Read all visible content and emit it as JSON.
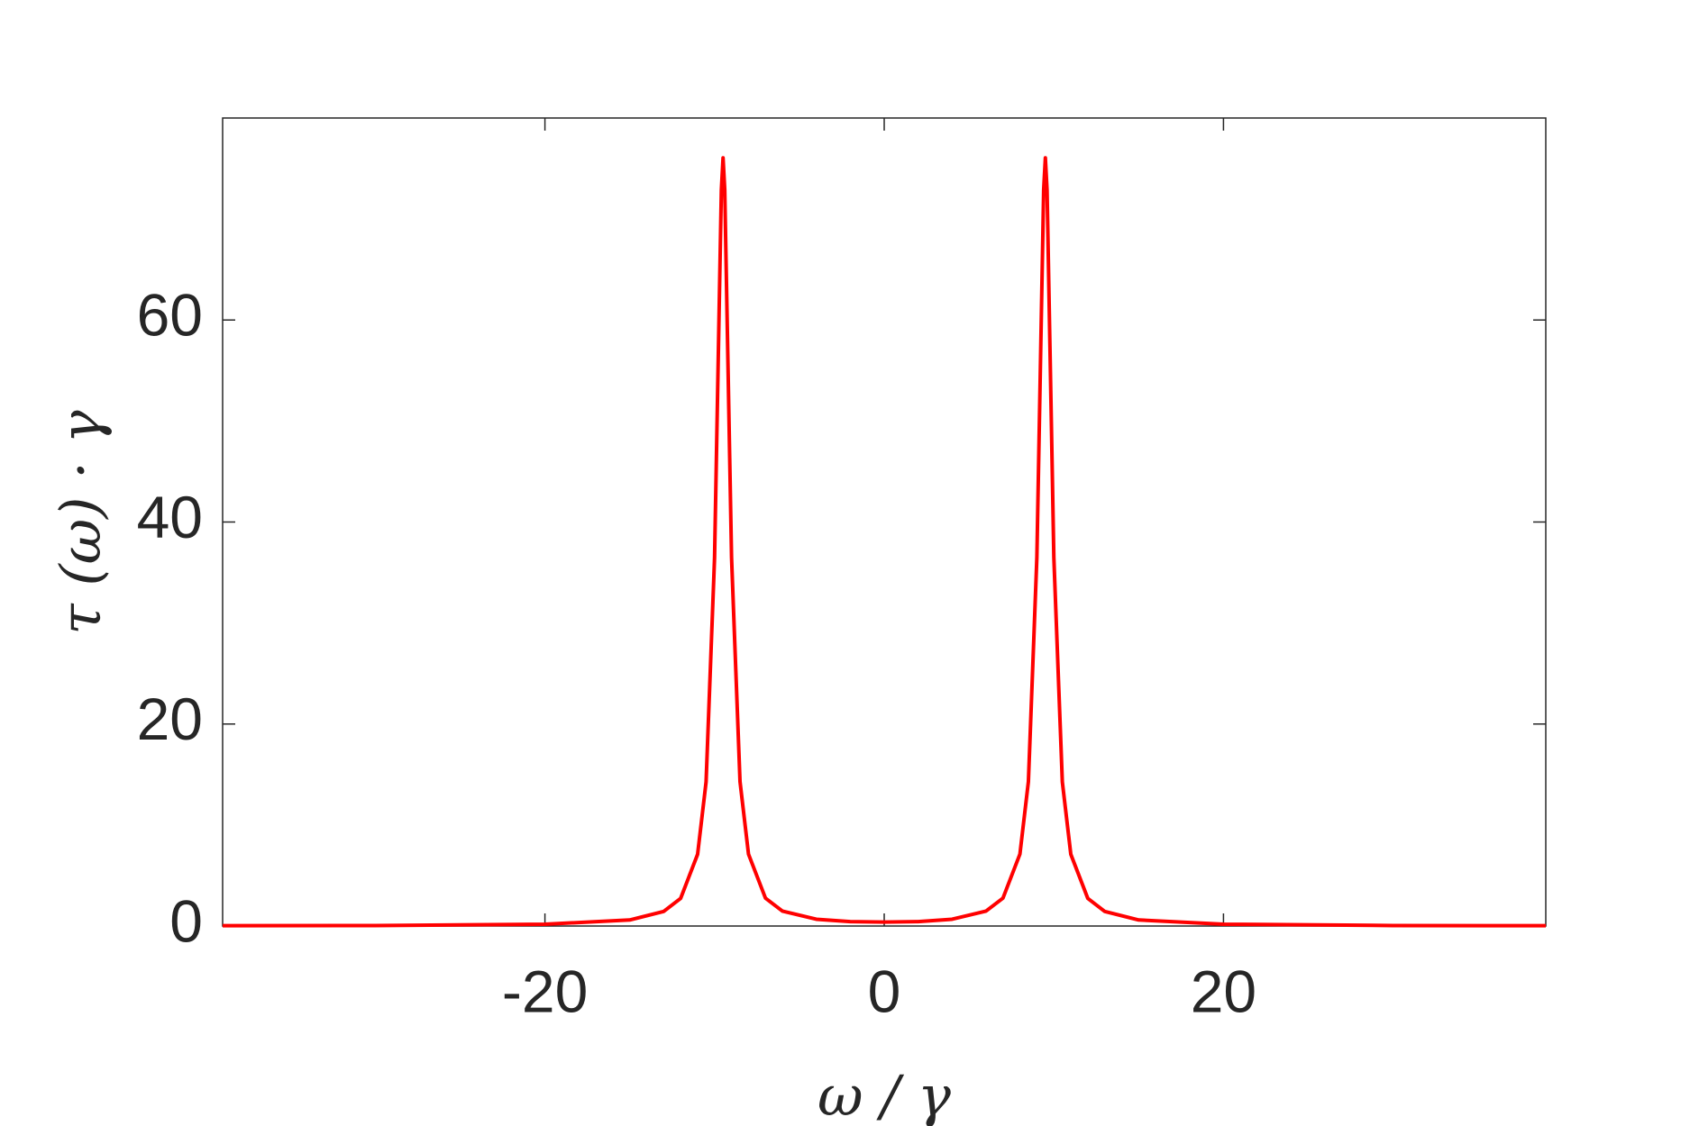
{
  "chart_data": {
    "type": "line",
    "xlabel": "ω / γ",
    "ylabel": "τ (ω) · γ",
    "x": [
      -39,
      -30,
      -20,
      -15,
      -13,
      -12,
      -11,
      -10.5,
      -10,
      -9.8,
      -9.6,
      -9.5,
      -9.4,
      -9.2,
      -9,
      -8.5,
      -8,
      -7,
      -6,
      -4,
      -2,
      0,
      2,
      4,
      6,
      7,
      8,
      8.5,
      9,
      9.2,
      9.4,
      9.5,
      9.6,
      9.8,
      10,
      10.5,
      11,
      12,
      13,
      15,
      20,
      30,
      39
    ],
    "values": [
      0.03,
      0.05,
      0.18,
      0.6,
      1.44,
      2.74,
      7.1,
      14.27,
      36.49,
      54.68,
      72.88,
      76.05,
      72.89,
      54.69,
      36.5,
      14.29,
      7.12,
      2.76,
      1.48,
      0.67,
      0.44,
      0.39,
      0.44,
      0.67,
      1.48,
      2.76,
      7.12,
      14.29,
      36.5,
      54.69,
      72.89,
      76.05,
      72.88,
      54.68,
      36.49,
      14.27,
      7.1,
      2.74,
      1.44,
      0.6,
      0.18,
      0.05,
      0.03
    ],
    "color": "#ff0000",
    "xlim": [
      -39,
      39
    ],
    "xticks": [
      -20,
      0,
      20
    ],
    "ylim": [
      0,
      80
    ],
    "yticks": [
      0,
      20,
      40,
      60
    ],
    "grid": false
  }
}
